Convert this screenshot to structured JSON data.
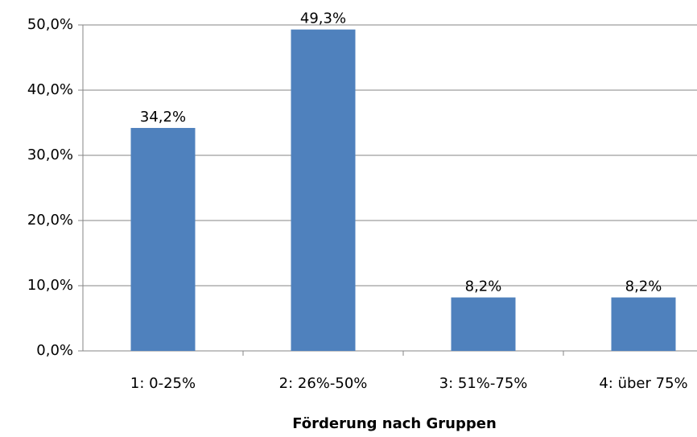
{
  "chart_data": {
    "type": "bar",
    "x_label": "Förderung nach Gruppen",
    "categories": [
      "1: 0-25%",
      "2: 26%-50%",
      "3: 51%-75%",
      "4: über 75%"
    ],
    "values": [
      34.2,
      49.3,
      8.2,
      8.2
    ],
    "value_labels": [
      "34,2%",
      "49,3%",
      "8,2%",
      "8,2%"
    ],
    "color": "#4f81bd",
    "ylim": [
      0,
      50
    ],
    "yticks": [
      {
        "value": 0,
        "label": "0,0%"
      },
      {
        "value": 10,
        "label": "10,0%"
      },
      {
        "value": 20,
        "label": "20,0%"
      },
      {
        "value": 30,
        "label": "30,0%"
      },
      {
        "value": 40,
        "label": "40,0%"
      },
      {
        "value": 50,
        "label": "50,0%"
      }
    ],
    "grid": true
  }
}
